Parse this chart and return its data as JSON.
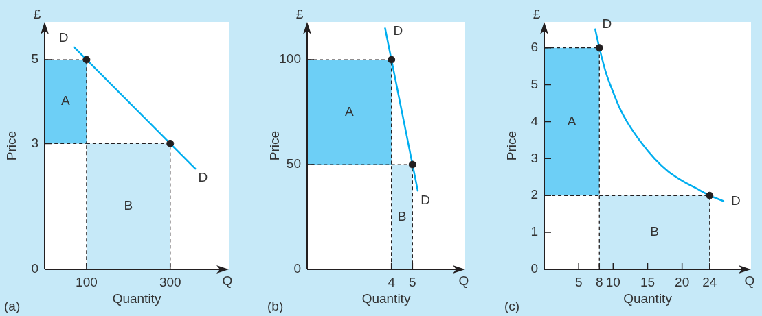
{
  "chart_data": [
    {
      "type": "line",
      "title": "(a)",
      "xlabel": "Quantity",
      "ylabel": "Price",
      "annotations": [
        "£",
        "Q"
      ],
      "xlim": [
        0,
        440
      ],
      "ylim": [
        0,
        5.9
      ],
      "xticks": [
        100,
        300
      ],
      "yticks": [
        0,
        3,
        5
      ],
      "series": [
        {
          "type": "area",
          "name": "A",
          "color": "#6dcff6",
          "x": [
            0,
            100,
            100,
            0
          ],
          "values": [
            5,
            5,
            3,
            3
          ],
          "line_style": "dashed"
        },
        {
          "type": "area",
          "name": "B",
          "color": "#c6e9f8",
          "x": [
            100,
            300
          ],
          "values": [
            3,
            3
          ],
          "line_style": "dashed"
        },
        {
          "type": "line",
          "name": "D",
          "color": "#00aeef",
          "x": [
            70,
            360
          ],
          "values": [
            5.3,
            2.4
          ]
        },
        {
          "type": "scatter",
          "color": "#231f20",
          "x": [
            100,
            300
          ],
          "values": [
            5,
            3
          ],
          "marker": "circle"
        }
      ]
    },
    {
      "type": "line",
      "title": "(b)",
      "xlabel": "Quantity",
      "ylabel": "Price",
      "annotations": [
        "£",
        "Q"
      ],
      "xlim": [
        0,
        7.5
      ],
      "ylim": [
        0,
        118
      ],
      "xticks": [
        4,
        5
      ],
      "yticks": [
        0,
        50,
        100
      ],
      "series": [
        {
          "type": "area",
          "name": "A",
          "color": "#6dcff6",
          "x": [
            0,
            4,
            4,
            0
          ],
          "values": [
            100,
            100,
            50,
            50
          ],
          "line_style": "dashed"
        },
        {
          "type": "area",
          "name": "B",
          "color": "#c6e9f8",
          "x": [
            4,
            5
          ],
          "values": [
            50,
            50
          ],
          "line_style": "dashed"
        },
        {
          "type": "line",
          "name": "D",
          "color": "#00aeef",
          "x": [
            3.7,
            5.25
          ],
          "values": [
            115,
            37.5
          ]
        },
        {
          "type": "scatter",
          "color": "#231f20",
          "x": [
            4,
            5
          ],
          "values": [
            100,
            50
          ],
          "marker": "circle"
        }
      ]
    },
    {
      "type": "line",
      "title": "(c)",
      "xlabel": "Quantity",
      "ylabel": "Price",
      "annotations": [
        "£",
        "Q"
      ],
      "xlim": [
        0,
        30
      ],
      "ylim": [
        0,
        6.7
      ],
      "xticks": [
        5,
        8,
        10,
        15,
        20,
        24
      ],
      "yticks": [
        0,
        1,
        2,
        3,
        4,
        5,
        6
      ],
      "series": [
        {
          "type": "area",
          "name": "A",
          "color": "#6dcff6",
          "x": [
            0,
            8,
            8,
            0
          ],
          "values": [
            6,
            6,
            2,
            2
          ],
          "line_style": "dashed"
        },
        {
          "type": "area",
          "name": "B",
          "color": "#c6e9f8",
          "x": [
            8,
            24
          ],
          "values": [
            2,
            2
          ],
          "line_style": "dashed"
        },
        {
          "type": "line",
          "name": "D",
          "color": "#00aeef",
          "x": [
            7.4,
            8,
            9,
            10,
            11,
            12,
            14,
            16,
            18,
            20,
            22,
            24,
            26
          ],
          "values": [
            6.5,
            6,
            5.3,
            4.8,
            4.35,
            4,
            3.45,
            3,
            2.65,
            2.4,
            2.2,
            2,
            1.85
          ]
        },
        {
          "type": "scatter",
          "color": "#231f20",
          "x": [
            8,
            24
          ],
          "values": [
            6,
            2
          ],
          "marker": "circle"
        }
      ]
    }
  ]
}
